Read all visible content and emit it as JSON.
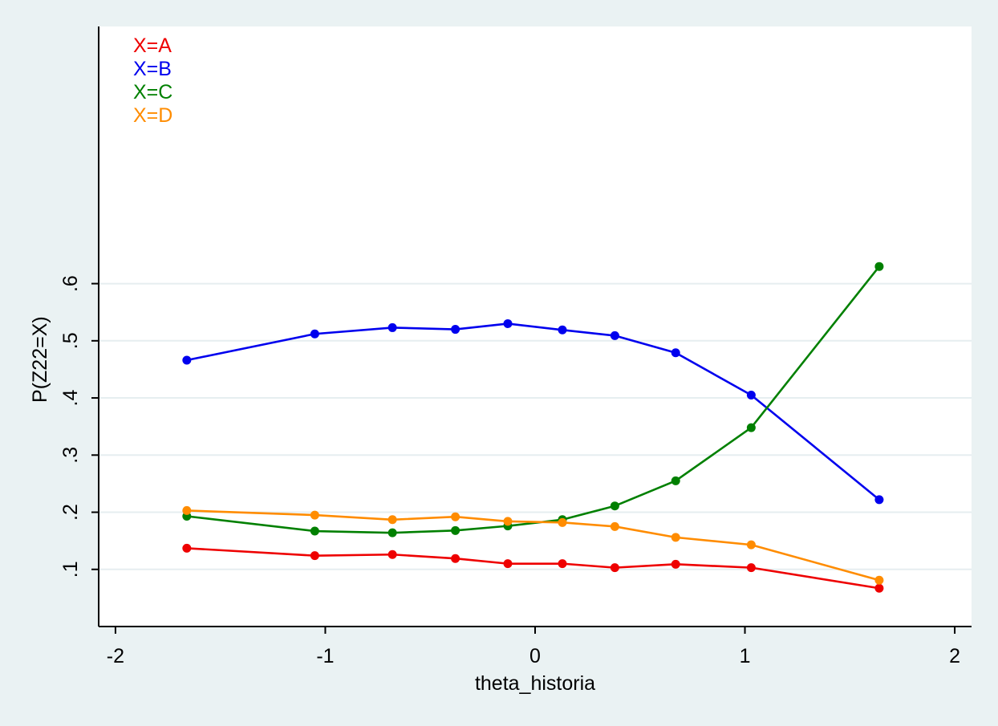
{
  "chart_data": {
    "type": "line",
    "xlabel": "theta_historia",
    "ylabel": "P(Z22=X)",
    "xlim": [
      -2.08,
      2.08
    ],
    "ylim": [
      0.0,
      1.05
    ],
    "x_ticks": [
      -2,
      -1,
      0,
      1,
      2
    ],
    "x_tick_labels": [
      "-2",
      "-1",
      "0",
      "1",
      "2"
    ],
    "y_ticks": [
      0.1,
      0.2,
      0.3,
      0.4,
      0.5,
      0.6
    ],
    "y_tick_labels": [
      ".1",
      ".2",
      ".3",
      ".4",
      ".5",
      ".6"
    ],
    "grid": "horizontal",
    "legend_position": "top-left",
    "x": [
      -1.66,
      -1.05,
      -0.68,
      -0.38,
      -0.13,
      0.13,
      0.38,
      0.67,
      1.03,
      1.64
    ],
    "series": [
      {
        "name": "X=A",
        "color": "#ee0000",
        "values": [
          0.137,
          0.124,
          0.126,
          0.119,
          0.11,
          0.11,
          0.103,
          0.109,
          0.103,
          0.067
        ]
      },
      {
        "name": "X=B",
        "color": "#0000ee",
        "values": [
          0.466,
          0.512,
          0.523,
          0.52,
          0.53,
          0.519,
          0.509,
          0.479,
          0.405,
          0.222
        ]
      },
      {
        "name": "X=C",
        "color": "#008000",
        "values": [
          0.193,
          0.167,
          0.164,
          0.168,
          0.176,
          0.187,
          0.211,
          0.255,
          0.348,
          0.63
        ]
      },
      {
        "name": "X=D",
        "color": "#ff8c00",
        "values": [
          0.203,
          0.195,
          0.187,
          0.192,
          0.184,
          0.182,
          0.175,
          0.156,
          0.143,
          0.081
        ]
      }
    ]
  }
}
